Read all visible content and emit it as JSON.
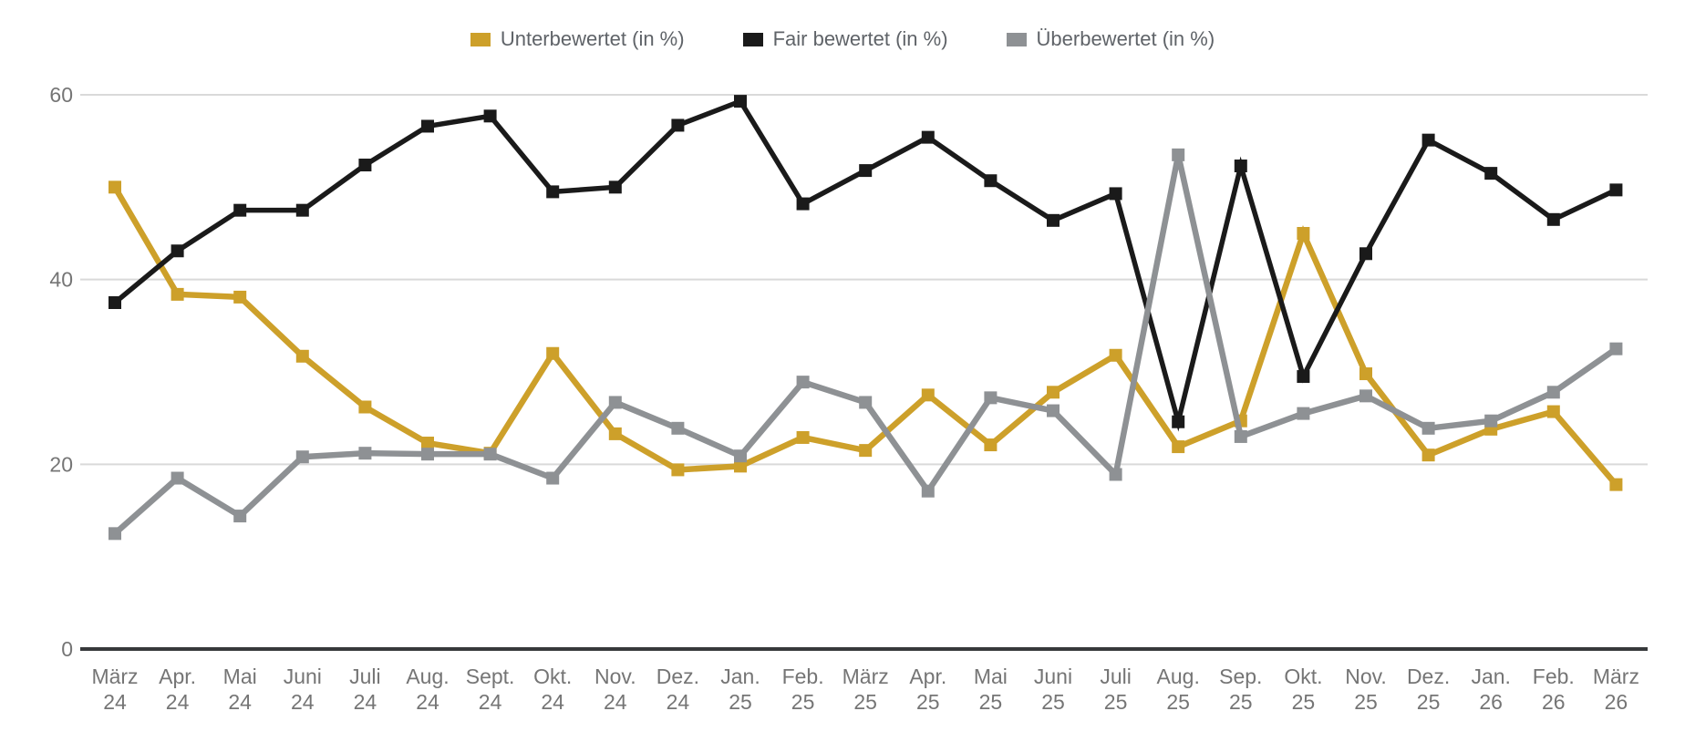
{
  "chart_data": {
    "type": "line",
    "title": "",
    "xlabel": "",
    "ylabel": "",
    "ylim": [
      0,
      60
    ],
    "yticks": [
      0,
      20,
      40,
      60
    ],
    "grid": true,
    "legend_position": "top",
    "categories": [
      {
        "month": "März",
        "year": "24"
      },
      {
        "month": "Apr.",
        "year": "24"
      },
      {
        "month": "Mai",
        "year": "24"
      },
      {
        "month": "Juni",
        "year": "24"
      },
      {
        "month": "Juli",
        "year": "24"
      },
      {
        "month": "Aug.",
        "year": "24"
      },
      {
        "month": "Sept.",
        "year": "24"
      },
      {
        "month": "Okt.",
        "year": "24"
      },
      {
        "month": "Nov.",
        "year": "24"
      },
      {
        "month": "Dez.",
        "year": "24"
      },
      {
        "month": "Jan.",
        "year": "25"
      },
      {
        "month": "Feb.",
        "year": "25"
      },
      {
        "month": "März",
        "year": "25"
      },
      {
        "month": "Apr.",
        "year": "25"
      },
      {
        "month": "Mai",
        "year": "25"
      },
      {
        "month": "Juni",
        "year": "25"
      },
      {
        "month": "Juli",
        "year": "25"
      },
      {
        "month": "Aug.",
        "year": "25"
      },
      {
        "month": "Sep.",
        "year": "25"
      },
      {
        "month": "Okt.",
        "year": "25"
      },
      {
        "month": "Nov.",
        "year": "25"
      },
      {
        "month": "Dez.",
        "year": "25"
      },
      {
        "month": "Jan.",
        "year": "26"
      },
      {
        "month": "Feb.",
        "year": "26"
      },
      {
        "month": "März",
        "year": "26"
      }
    ],
    "series": [
      {
        "name": "Unterbewertet (in %)",
        "color": "#CDA02A",
        "line_width": 6.5,
        "values": [
          50.0,
          38.4,
          38.1,
          31.7,
          26.2,
          22.3,
          21.2,
          32.0,
          23.3,
          19.4,
          19.8,
          22.9,
          21.5,
          27.5,
          22.1,
          27.8,
          31.8,
          21.9,
          24.7,
          45.0,
          29.8,
          21.0,
          23.8,
          25.7,
          17.8
        ]
      },
      {
        "name": "Fair bewertet (in %)",
        "color": "#1A1A1A",
        "line_width": 5.5,
        "values": [
          37.5,
          43.1,
          47.5,
          47.5,
          52.4,
          56.6,
          57.7,
          49.5,
          50.0,
          56.7,
          59.3,
          48.2,
          51.8,
          55.4,
          50.7,
          46.4,
          49.3,
          24.6,
          52.3,
          29.5,
          42.8,
          55.1,
          51.5,
          46.5,
          49.7
        ]
      },
      {
        "name": "Überbewertet (in %)",
        "color": "#8E9194",
        "line_width": 6.5,
        "values": [
          12.5,
          18.5,
          14.4,
          20.8,
          21.2,
          21.1,
          21.1,
          18.5,
          26.7,
          23.9,
          20.9,
          28.9,
          26.7,
          17.1,
          27.2,
          25.8,
          18.9,
          53.5,
          23.0,
          25.5,
          27.4,
          23.9,
          24.7,
          27.8,
          32.5
        ]
      }
    ]
  },
  "axis_style": {
    "tick_label_color": "#757575",
    "grid_color": "#D9D9D9",
    "baseline_color": "#37393B",
    "legend_text_color": "#5f6368"
  }
}
